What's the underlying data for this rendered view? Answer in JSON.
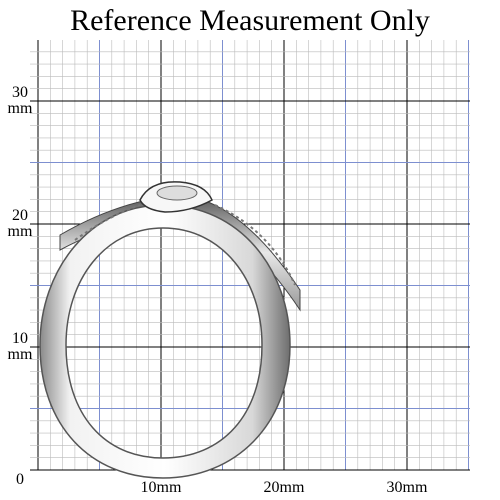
{
  "header": {
    "title": "Reference Measurement Only"
  },
  "x_labels": [
    "10mm",
    "20mm",
    "30mm"
  ],
  "y_labels": [
    {
      "number": "30",
      "unit": "mm"
    },
    {
      "number": "20",
      "unit": "mm"
    },
    {
      "number": "10",
      "unit": "mm"
    }
  ],
  "origin_label": "0"
}
